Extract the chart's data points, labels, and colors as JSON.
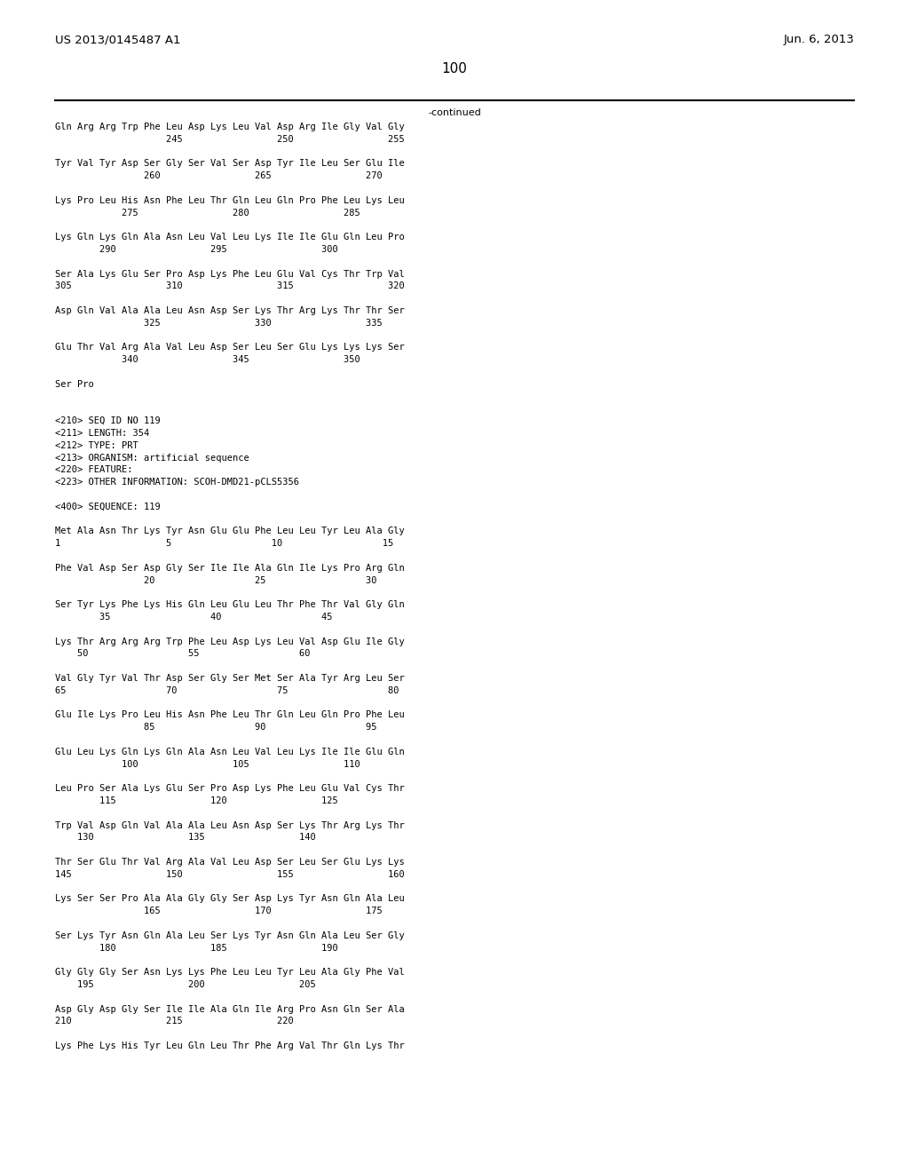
{
  "header_left": "US 2013/0145487 A1",
  "header_right": "Jun. 6, 2013",
  "page_number": "100",
  "continued_text": "-continued",
  "background_color": "#ffffff",
  "text_color": "#000000",
  "content_lines": [
    "Gln Arg Arg Trp Phe Leu Asp Lys Leu Val Asp Arg Ile Gly Val Gly",
    "                    245                 250                 255",
    "",
    "Tyr Val Tyr Asp Ser Gly Ser Val Ser Asp Tyr Ile Leu Ser Glu Ile",
    "                260                 265                 270",
    "",
    "Lys Pro Leu His Asn Phe Leu Thr Gln Leu Gln Pro Phe Leu Lys Leu",
    "            275                 280                 285",
    "",
    "Lys Gln Lys Gln Ala Asn Leu Val Leu Lys Ile Ile Glu Gln Leu Pro",
    "        290                 295                 300",
    "",
    "Ser Ala Lys Glu Ser Pro Asp Lys Phe Leu Glu Val Cys Thr Trp Val",
    "305                 310                 315                 320",
    "",
    "Asp Gln Val Ala Ala Leu Asn Asp Ser Lys Thr Arg Lys Thr Thr Ser",
    "                325                 330                 335",
    "",
    "Glu Thr Val Arg Ala Val Leu Asp Ser Leu Ser Glu Lys Lys Lys Ser",
    "            340                 345                 350",
    "",
    "Ser Pro",
    "",
    "",
    "<210> SEQ ID NO 119",
    "<211> LENGTH: 354",
    "<212> TYPE: PRT",
    "<213> ORGANISM: artificial sequence",
    "<220> FEATURE:",
    "<223> OTHER INFORMATION: SCOH-DMD21-pCLS5356",
    "",
    "<400> SEQUENCE: 119",
    "",
    "Met Ala Asn Thr Lys Tyr Asn Glu Glu Phe Leu Leu Tyr Leu Ala Gly",
    "1                   5                  10                  15",
    "",
    "Phe Val Asp Ser Asp Gly Ser Ile Ile Ala Gln Ile Lys Pro Arg Gln",
    "                20                  25                  30",
    "",
    "Ser Tyr Lys Phe Lys His Gln Leu Glu Leu Thr Phe Thr Val Gly Gln",
    "        35                  40                  45",
    "",
    "Lys Thr Arg Arg Arg Trp Phe Leu Asp Lys Leu Val Asp Glu Ile Gly",
    "    50                  55                  60",
    "",
    "Val Gly Tyr Val Thr Asp Ser Gly Ser Met Ser Ala Tyr Arg Leu Ser",
    "65                  70                  75                  80",
    "",
    "Glu Ile Lys Pro Leu His Asn Phe Leu Thr Gln Leu Gln Pro Phe Leu",
    "                85                  90                  95",
    "",
    "Glu Leu Lys Gln Lys Gln Ala Asn Leu Val Leu Lys Ile Ile Glu Gln",
    "            100                 105                 110",
    "",
    "Leu Pro Ser Ala Lys Glu Ser Pro Asp Lys Phe Leu Glu Val Cys Thr",
    "        115                 120                 125",
    "",
    "Trp Val Asp Gln Val Ala Ala Leu Asn Asp Ser Lys Thr Arg Lys Thr",
    "    130                 135                 140",
    "",
    "Thr Ser Glu Thr Val Arg Ala Val Leu Asp Ser Leu Ser Glu Lys Lys",
    "145                 150                 155                 160",
    "",
    "Lys Ser Ser Pro Ala Ala Gly Gly Ser Asp Lys Tyr Asn Gln Ala Leu",
    "                165                 170                 175",
    "",
    "Ser Lys Tyr Asn Gln Ala Leu Ser Lys Tyr Asn Gln Ala Leu Ser Gly",
    "        180                 185                 190",
    "",
    "Gly Gly Gly Ser Asn Lys Lys Phe Leu Leu Tyr Leu Ala Gly Phe Val",
    "    195                 200                 205",
    "",
    "Asp Gly Asp Gly Ser Ile Ile Ala Gln Ile Arg Pro Asn Gln Ser Ala",
    "210                 215                 220",
    "",
    "Lys Phe Lys His Tyr Leu Gln Leu Thr Phe Arg Val Thr Gln Lys Thr"
  ]
}
